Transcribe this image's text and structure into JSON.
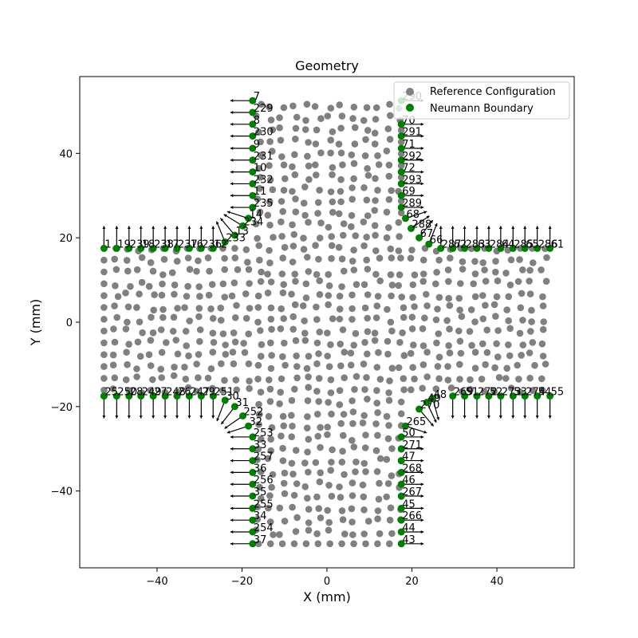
{
  "chart_data": {
    "type": "scatter",
    "title": "Geometry",
    "xlabel": "X (mm)",
    "ylabel": "Y (mm)",
    "xlim": [
      -58.2,
      58.2
    ],
    "ylim": [
      -58.2,
      58.2
    ],
    "x_ticks": [
      -40,
      -20,
      0,
      20,
      40
    ],
    "y_ticks": [
      -40,
      -20,
      0,
      20,
      40
    ],
    "x_tick_labels": [
      "−40",
      "−20",
      "0",
      "20",
      "40"
    ],
    "y_tick_labels": [
      "−40",
      "−20",
      "0",
      "20",
      "40"
    ],
    "grid": false,
    "legend_position": "top-right",
    "series": [
      {
        "name": "Reference Configuration",
        "color": "#808080",
        "geometry": "cross-shaped interior point cloud, arm half-width 17.5 mm, extent 52.5 mm"
      },
      {
        "name": "Neumann Boundary",
        "color": "#008000",
        "arrow_color": "#000000"
      }
    ],
    "boundary_nodes": [
      {
        "x": -17.5,
        "y": 52.5,
        "label": "7"
      },
      {
        "x": -17.5,
        "y": 49.7,
        "label": "229"
      },
      {
        "x": -17.5,
        "y": 46.9,
        "label": "8"
      },
      {
        "x": -17.5,
        "y": 44.1,
        "label": "230"
      },
      {
        "x": -17.5,
        "y": 41.2,
        "label": "9"
      },
      {
        "x": -17.5,
        "y": 38.4,
        "label": "231"
      },
      {
        "x": -17.5,
        "y": 35.6,
        "label": "10"
      },
      {
        "x": -17.5,
        "y": 32.8,
        "label": "232"
      },
      {
        "x": -17.5,
        "y": 30.0,
        "label": "11"
      },
      {
        "x": -17.5,
        "y": 27.2,
        "label": "235"
      },
      {
        "x": -18.5,
        "y": 24.6,
        "label": "14"
      },
      {
        "x": -19.8,
        "y": 22.8,
        "label": "234"
      },
      {
        "x": -21.7,
        "y": 20.6,
        "label": "13"
      },
      {
        "x": -24.0,
        "y": 19.0,
        "label": "233"
      },
      {
        "x": -26.8,
        "y": 17.5,
        "label": "12"
      },
      {
        "x": -29.6,
        "y": 17.5,
        "label": "236"
      },
      {
        "x": -32.4,
        "y": 17.5,
        "label": "16"
      },
      {
        "x": -35.3,
        "y": 17.5,
        "label": "237"
      },
      {
        "x": -38.1,
        "y": 17.5,
        "label": "17"
      },
      {
        "x": -40.9,
        "y": 17.5,
        "label": "238"
      },
      {
        "x": -43.8,
        "y": 17.5,
        "label": "18"
      },
      {
        "x": -46.6,
        "y": 17.5,
        "label": "239"
      },
      {
        "x": -49.5,
        "y": 17.5,
        "label": "19"
      },
      {
        "x": -52.5,
        "y": 17.5,
        "label": "1"
      },
      {
        "x": 17.5,
        "y": 52.5,
        "label": "290"
      },
      {
        "x": 17.5,
        "y": 46.9,
        "label": "70"
      },
      {
        "x": 17.5,
        "y": 44.1,
        "label": "291"
      },
      {
        "x": 17.5,
        "y": 41.2,
        "label": "71"
      },
      {
        "x": 17.5,
        "y": 38.4,
        "label": "292"
      },
      {
        "x": 17.5,
        "y": 35.6,
        "label": "72"
      },
      {
        "x": 17.5,
        "y": 32.8,
        "label": "293"
      },
      {
        "x": 17.5,
        "y": 30.0,
        "label": "69"
      },
      {
        "x": 17.5,
        "y": 27.2,
        "label": "289"
      },
      {
        "x": 18.5,
        "y": 24.6,
        "label": "68"
      },
      {
        "x": 19.8,
        "y": 22.2,
        "label": "288"
      },
      {
        "x": 21.7,
        "y": 20.0,
        "label": "67"
      },
      {
        "x": 24.0,
        "y": 18.5,
        "label": "66"
      },
      {
        "x": 26.8,
        "y": 17.5,
        "label": "287"
      },
      {
        "x": 29.6,
        "y": 17.5,
        "label": "62"
      },
      {
        "x": 32.4,
        "y": 17.5,
        "label": "283"
      },
      {
        "x": 35.3,
        "y": 17.5,
        "label": "63"
      },
      {
        "x": 38.1,
        "y": 17.5,
        "label": "284"
      },
      {
        "x": 40.9,
        "y": 17.5,
        "label": "64"
      },
      {
        "x": 43.8,
        "y": 17.5,
        "label": "285"
      },
      {
        "x": 46.6,
        "y": 17.5,
        "label": "65"
      },
      {
        "x": 49.5,
        "y": 17.5,
        "label": "286"
      },
      {
        "x": 52.5,
        "y": 17.5,
        "label": "61"
      },
      {
        "x": -52.5,
        "y": -17.5,
        "label": "25"
      },
      {
        "x": -49.5,
        "y": -17.5,
        "label": "250"
      },
      {
        "x": -46.6,
        "y": -17.5,
        "label": "28"
      },
      {
        "x": -43.8,
        "y": -17.5,
        "label": "249"
      },
      {
        "x": -40.9,
        "y": -17.5,
        "label": "27"
      },
      {
        "x": -38.1,
        "y": -17.5,
        "label": "248"
      },
      {
        "x": -35.3,
        "y": -17.5,
        "label": "26"
      },
      {
        "x": -32.4,
        "y": -17.5,
        "label": "247"
      },
      {
        "x": -29.6,
        "y": -17.5,
        "label": "29"
      },
      {
        "x": -26.8,
        "y": -17.5,
        "label": "251"
      },
      {
        "x": -24.0,
        "y": -18.5,
        "label": "30"
      },
      {
        "x": -21.7,
        "y": -20.0,
        "label": "31"
      },
      {
        "x": -19.8,
        "y": -22.2,
        "label": "252"
      },
      {
        "x": -18.5,
        "y": -24.6,
        "label": "32"
      },
      {
        "x": -17.5,
        "y": -27.2,
        "label": "253"
      },
      {
        "x": -17.5,
        "y": -30.0,
        "label": "33"
      },
      {
        "x": -17.5,
        "y": -32.8,
        "label": "257"
      },
      {
        "x": -17.5,
        "y": -35.6,
        "label": "36"
      },
      {
        "x": -17.5,
        "y": -38.4,
        "label": "256"
      },
      {
        "x": -17.5,
        "y": -41.2,
        "label": "35"
      },
      {
        "x": -17.5,
        "y": -44.1,
        "label": "255"
      },
      {
        "x": -17.5,
        "y": -46.9,
        "label": "34"
      },
      {
        "x": -17.5,
        "y": -49.7,
        "label": "254"
      },
      {
        "x": -17.5,
        "y": -52.5,
        "label": "37"
      },
      {
        "x": 17.5,
        "y": -27.2,
        "label": "50"
      },
      {
        "x": 17.5,
        "y": -30.0,
        "label": "271"
      },
      {
        "x": 17.5,
        "y": -32.8,
        "label": "47"
      },
      {
        "x": 17.5,
        "y": -35.6,
        "label": "268"
      },
      {
        "x": 17.5,
        "y": -38.4,
        "label": "46"
      },
      {
        "x": 17.5,
        "y": -41.2,
        "label": "267"
      },
      {
        "x": 17.5,
        "y": -44.1,
        "label": "45"
      },
      {
        "x": 17.5,
        "y": -46.9,
        "label": "266"
      },
      {
        "x": 17.5,
        "y": -49.7,
        "label": "44"
      },
      {
        "x": 17.5,
        "y": -52.5,
        "label": "43"
      },
      {
        "x": 18.5,
        "y": -24.6,
        "label": "265"
      },
      {
        "x": 21.7,
        "y": -20.6,
        "label": "270"
      },
      {
        "x": 23.5,
        "y": -19.0,
        "label": "49"
      },
      {
        "x": 24.9,
        "y": -18.1,
        "label": "48"
      },
      {
        "x": 29.6,
        "y": -17.5,
        "label": "269"
      },
      {
        "x": 32.4,
        "y": -17.5,
        "label": "51"
      },
      {
        "x": 35.3,
        "y": -17.5,
        "label": "272"
      },
      {
        "x": 38.1,
        "y": -17.5,
        "label": "52"
      },
      {
        "x": 40.9,
        "y": -17.5,
        "label": "273"
      },
      {
        "x": 43.8,
        "y": -17.5,
        "label": "53"
      },
      {
        "x": 46.6,
        "y": -17.5,
        "label": "274"
      },
      {
        "x": 49.5,
        "y": -17.5,
        "label": "54"
      },
      {
        "x": 52.5,
        "y": -17.5,
        "label": "55"
      }
    ]
  }
}
